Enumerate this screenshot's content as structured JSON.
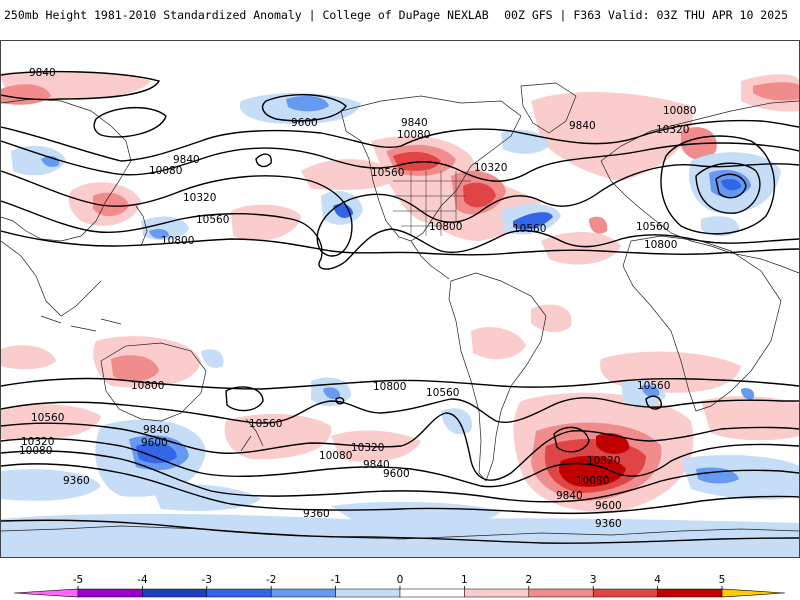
{
  "header": {
    "left_title": "250mb Height 1981-2010 Standardized Anomaly | College of DuPage NEXLAB",
    "right_title": "00Z GFS | F363 Valid: 03Z THU APR 10 2025"
  },
  "contour_labels": [
    {
      "text": "9840"
    },
    {
      "text": "9600"
    },
    {
      "text": "9840"
    },
    {
      "text": "10080"
    },
    {
      "text": "10080"
    },
    {
      "text": "9840"
    },
    {
      "text": "10320"
    },
    {
      "text": "9840"
    },
    {
      "text": "10080"
    },
    {
      "text": "10320"
    },
    {
      "text": "10560"
    },
    {
      "text": "10800"
    },
    {
      "text": "10560"
    },
    {
      "text": "10320"
    },
    {
      "text": "10800"
    },
    {
      "text": "10560"
    },
    {
      "text": "10560"
    },
    {
      "text": "10800"
    },
    {
      "text": "10800"
    },
    {
      "text": "10800"
    },
    {
      "text": "10560"
    },
    {
      "text": "10560"
    },
    {
      "text": "10560"
    },
    {
      "text": "10560"
    },
    {
      "text": "9840"
    },
    {
      "text": "9600"
    },
    {
      "text": "10320"
    },
    {
      "text": "10080"
    },
    {
      "text": "10320"
    },
    {
      "text": "10080"
    },
    {
      "text": "9840"
    },
    {
      "text": "9600"
    },
    {
      "text": "10320"
    },
    {
      "text": "10080"
    },
    {
      "text": "9840"
    },
    {
      "text": "9600"
    },
    {
      "text": "9360"
    },
    {
      "text": "9360"
    },
    {
      "text": "9360"
    }
  ],
  "colorbar": {
    "ticks": [
      "-5",
      "-4",
      "-3",
      "-2",
      "-1",
      "0",
      "1",
      "2",
      "3",
      "4",
      "5"
    ],
    "colors": [
      "#ff66ff",
      "#9900cc",
      "#1f3fbf",
      "#3366e6",
      "#6699f0",
      "#c6ddf8",
      "#ffffff",
      "#fbcccc",
      "#f08c8c",
      "#e04545",
      "#c00000",
      "#ff9900",
      "#ffcc00"
    ]
  },
  "anomaly_colors": {
    "pos1": "#fbcccc",
    "pos2": "#f08c8c",
    "pos3": "#e04545",
    "pos4": "#c00000",
    "neg1": "#c6ddf8",
    "neg2": "#6699f0",
    "neg3": "#3366e6"
  }
}
